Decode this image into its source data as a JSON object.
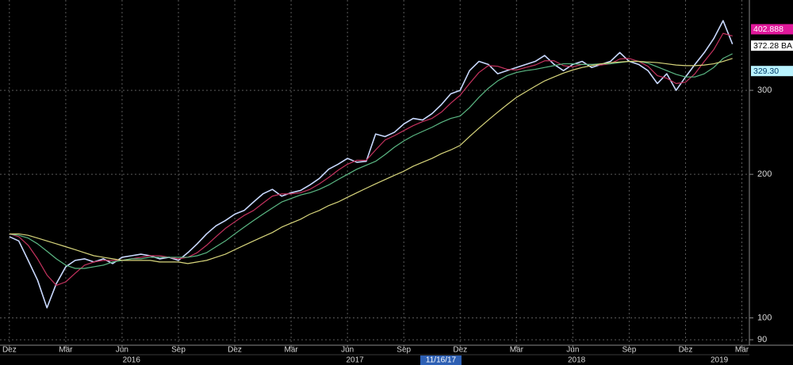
{
  "chart_data": {
    "type": "line",
    "log_scale": true,
    "grid": true,
    "background": "#000000",
    "x": [
      0,
      0.5,
      1,
      1.5,
      2,
      2.5,
      3,
      3.5,
      4,
      4.5,
      5,
      5.5,
      6,
      6.5,
      7,
      7.5,
      8,
      8.5,
      9,
      9.5,
      10,
      10.5,
      11,
      11.5,
      12,
      12.5,
      13,
      13.5,
      14,
      14.5,
      15,
      15.5,
      16,
      16.5,
      17,
      17.5,
      18,
      18.5,
      19,
      19.5,
      20,
      20.5,
      21,
      21.5,
      22,
      22.5,
      23,
      23.5,
      24,
      24.5,
      25,
      25.5,
      26,
      26.5,
      27,
      27.5,
      28,
      28.5,
      29,
      29.5,
      30,
      30.5,
      31,
      31.5,
      32,
      32.5,
      33,
      33.5,
      34,
      34.5,
      35,
      35.5,
      36,
      36.5,
      37,
      37.5,
      38,
      38.5
    ],
    "series": [
      {
        "color": "#c9d9ff",
        "width": 1.6,
        "values": [
          148,
          145,
          132,
          120,
          105,
          118,
          128,
          132,
          133,
          131,
          133,
          130,
          134,
          135,
          136,
          135,
          133,
          134,
          132,
          137,
          143,
          150,
          156,
          160,
          165,
          168,
          175,
          182,
          186,
          180,
          183,
          185,
          190,
          196,
          205,
          210,
          216,
          212,
          213,
          243,
          240,
          245,
          255,
          262,
          260,
          268,
          280,
          295,
          300,
          330,
          345,
          340,
          325,
          330,
          335,
          340,
          345,
          355,
          340,
          330,
          340,
          345,
          335,
          340,
          345,
          360,
          345,
          340,
          330,
          310,
          325,
          300,
          320,
          340,
          360,
          385,
          420,
          375
        ]
      },
      {
        "color": "#c4325e",
        "width": 1.2,
        "values": [
          150,
          148,
          142,
          133,
          123,
          117,
          119,
          124,
          129,
          131,
          132,
          132,
          132,
          133,
          134,
          135,
          135,
          134,
          133,
          134,
          137,
          142,
          148,
          154,
          159,
          164,
          168,
          174,
          180,
          182,
          182,
          183,
          186,
          191,
          197,
          204,
          210,
          214,
          214,
          225,
          236,
          241,
          247,
          253,
          258,
          262,
          270,
          282,
          293,
          310,
          327,
          338,
          337,
          332,
          331,
          335,
          339,
          346,
          346,
          338,
          336,
          340,
          340,
          339,
          341,
          349,
          350,
          345,
          337,
          322,
          318,
          310,
          312,
          325,
          345,
          365,
          395,
          390
        ]
      },
      {
        "color": "#5bb884",
        "width": 1.2,
        "values": [
          150,
          149,
          147,
          143,
          138,
          133,
          129,
          127,
          127,
          128,
          129,
          131,
          132,
          133,
          133,
          134,
          134,
          134,
          134,
          134,
          135,
          137,
          141,
          145,
          150,
          155,
          160,
          165,
          170,
          175,
          178,
          181,
          183,
          186,
          190,
          195,
          200,
          205,
          209,
          213,
          220,
          228,
          235,
          241,
          246,
          251,
          257,
          262,
          265,
          276,
          290,
          303,
          314,
          322,
          327,
          330,
          332,
          335,
          338,
          341,
          341,
          340,
          340,
          341,
          341,
          343,
          345,
          345,
          342,
          336,
          330,
          324,
          320,
          320,
          325,
          335,
          350,
          358
        ]
      },
      {
        "color": "#d8d67c",
        "width": 1.2,
        "values": [
          150,
          150,
          149,
          147,
          145,
          143,
          141,
          139,
          137,
          135,
          134,
          133,
          132,
          132,
          132,
          132,
          131,
          131,
          131,
          130,
          131,
          132,
          134,
          136,
          139,
          142,
          145,
          148,
          151,
          155,
          158,
          161,
          165,
          168,
          172,
          175,
          179,
          183,
          187,
          191,
          195,
          199,
          203,
          208,
          212,
          216,
          221,
          225,
          230,
          240,
          250,
          260,
          270,
          280,
          290,
          298,
          306,
          314,
          320,
          326,
          331,
          335,
          338,
          341,
          343,
          344,
          345,
          345,
          344,
          343,
          341,
          339,
          338,
          338,
          339,
          341,
          345,
          350
        ]
      }
    ],
    "xlim": [
      -0.5,
      39.4
    ],
    "xticks": [
      {
        "value": 0,
        "label": "Dez"
      },
      {
        "value": 3,
        "label": "Mär"
      },
      {
        "value": 6,
        "label": "Jun"
      },
      {
        "value": 9,
        "label": "Sep"
      },
      {
        "value": 12,
        "label": "Dez"
      },
      {
        "value": 15,
        "label": "Mär"
      },
      {
        "value": 18,
        "label": "Jun"
      },
      {
        "value": 21,
        "label": "Sep"
      },
      {
        "value": 24,
        "label": "Dez"
      },
      {
        "value": 27,
        "label": "Mär"
      },
      {
        "value": 30,
        "label": "Jun"
      },
      {
        "value": 33,
        "label": "Sep"
      },
      {
        "value": 36,
        "label": "Dez"
      },
      {
        "value": 39,
        "label": "Mär"
      }
    ],
    "year_ticks": [
      {
        "value": 6.5,
        "label": "2016"
      },
      {
        "value": 18.4,
        "label": "2017"
      },
      {
        "value": 30.2,
        "label": "2018"
      },
      {
        "value": 37.8,
        "label": "2019"
      }
    ],
    "cursor_date": "11/16/17",
    "ylim": [
      89,
      464
    ],
    "yticks": [
      90,
      100,
      200,
      300
    ],
    "price_labels": [
      {
        "value": 402.888,
        "label": "402.888",
        "color": "#e0189b",
        "text_color": "#ffffff"
      },
      {
        "value": 372.28,
        "label": "372.28 BA",
        "color": "#ffffff",
        "text_color": "#000000"
      },
      {
        "value": 329.3,
        "label": "329.30",
        "color": "#b9f3ff",
        "text_color": "#003a66"
      }
    ]
  }
}
